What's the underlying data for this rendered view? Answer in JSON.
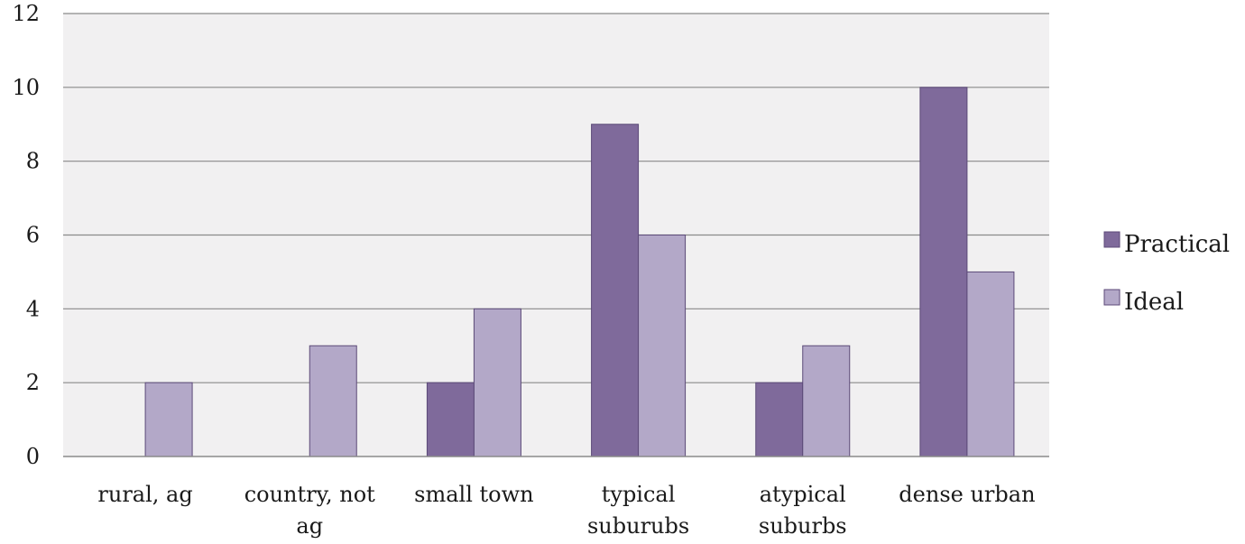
{
  "chart_data": {
    "type": "bar",
    "title": "",
    "xlabel": "",
    "ylabel": "",
    "categories": [
      [
        "rural, ag"
      ],
      [
        "country, not",
        "ag"
      ],
      [
        "small town"
      ],
      [
        "typical",
        "suburubs"
      ],
      [
        "atypical",
        "suburbs"
      ],
      [
        "dense urban"
      ]
    ],
    "series": [
      {
        "name": "Practical",
        "values": [
          0,
          0,
          2,
          9,
          2,
          10
        ],
        "color": "#7f6a9b"
      },
      {
        "name": "Ideal",
        "values": [
          2,
          3,
          4,
          6,
          3,
          5
        ],
        "color": "#b3a8c8"
      }
    ],
    "ylim": [
      0,
      12
    ],
    "yticks": [
      0,
      2,
      4,
      6,
      8,
      10,
      12
    ],
    "grid": true,
    "legend_position": "right",
    "plot_background": "#f1f0f1",
    "bar_outline": "#5c4a78",
    "gridline_color": "#8a8a8a"
  }
}
